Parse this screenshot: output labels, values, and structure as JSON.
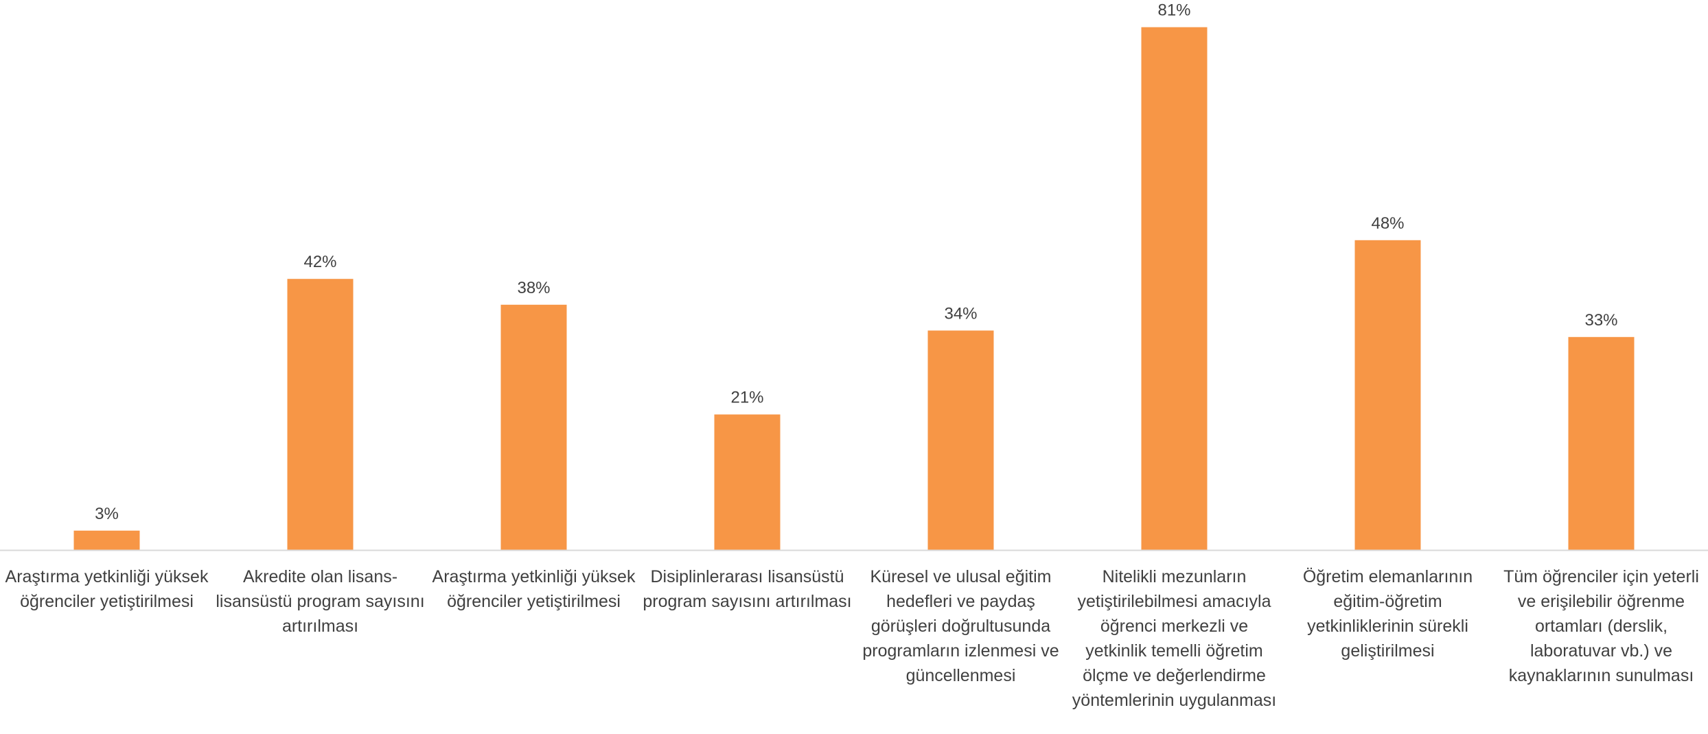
{
  "chart_data": {
    "type": "bar",
    "categories": [
      "Araştırma yetkinliği yüksek öğrenciler yetiştirilmesi",
      "Akredite olan lisans-lisansüstü program sayısını artırılması",
      "Araştırma yetkinliği yüksek öğrenciler yetiştirilmesi",
      "Disiplinlerarası lisansüstü program sayısını artırılması",
      "Küresel ve ulusal eğitim hedefleri ve paydaş görüşleri doğrultusunda programların izlenmesi ve güncellenmesi",
      "Nitelikli mezunların yetiştirilebilmesi amacıyla öğrenci merkezli ve yetkinlik temelli öğretim ölçme ve değerlendirme yöntemlerinin uygulanması",
      "Öğretim elemanlarının eğitim-öğretim yetkinliklerinin sürekli geliştirilmesi",
      "Tüm öğrenciler için yeterli ve erişilebilir öğrenme ortamları (derslik, laboratuvar vb.) ve kaynaklarının sunulması"
    ],
    "values": [
      3,
      42,
      38,
      21,
      34,
      81,
      48,
      33
    ],
    "data_labels": [
      "3%",
      "42%",
      "38%",
      "21%",
      "34%",
      "81%",
      "48%",
      "33%"
    ],
    "title": "",
    "xlabel": "",
    "ylabel": "",
    "ylim": [
      0,
      85
    ],
    "grid": false,
    "legend": "none",
    "colors": {
      "bar": "#F79646",
      "axis": "#D9D9D9",
      "text": "#404040"
    }
  }
}
